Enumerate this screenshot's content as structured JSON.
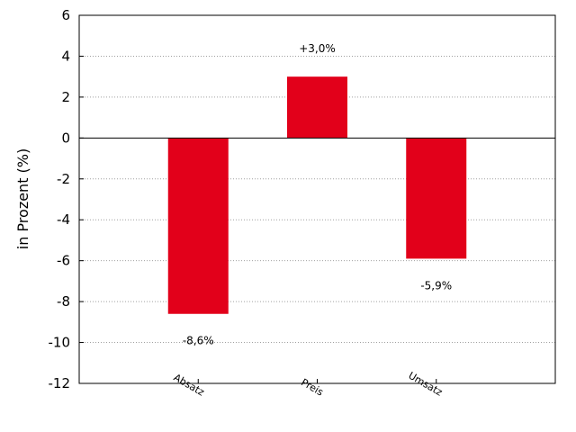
{
  "chart_data": {
    "type": "bar",
    "categories": [
      "Absatz",
      "Preis",
      "Umsatz"
    ],
    "values": [
      -8.6,
      3.0,
      -5.9
    ],
    "data_labels": [
      "-8,6%",
      "+3,0%",
      "-5,9%"
    ],
    "ylabel": "in Prozent (%)",
    "ylim": [
      -12,
      6
    ],
    "yticks": [
      -12,
      -10,
      -8,
      -6,
      -4,
      -2,
      0,
      2,
      4,
      6
    ],
    "ytick_labels": [
      "-12",
      "-10",
      "-8",
      "-6",
      "-4",
      "-2",
      "0",
      "2",
      "4",
      "6"
    ],
    "grid": true,
    "bar_color": "#e2001a"
  }
}
